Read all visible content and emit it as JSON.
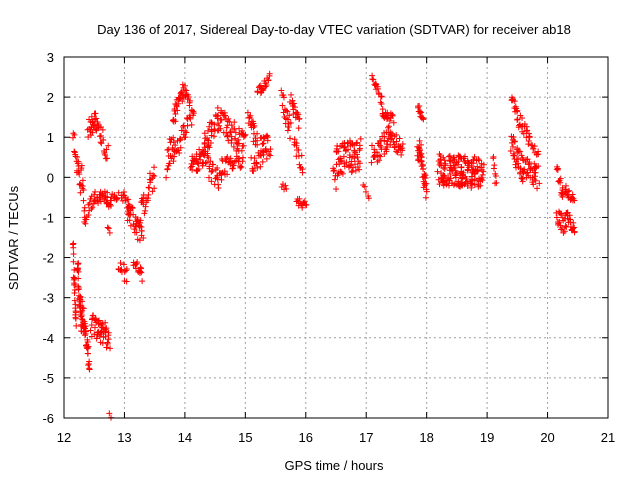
{
  "chart_data": {
    "type": "scatter",
    "title": "Day 136 of 2017, Sidereal Day-to-day VTEC variation (SDTVAR) for receiver ab18",
    "xlabel": "GPS time / hours",
    "ylabel": "SDTVAR / TECUs",
    "xlim": [
      12,
      21
    ],
    "ylim": [
      -6,
      3
    ],
    "x_ticks": [
      "12",
      "13",
      "14",
      "15",
      "16",
      "17",
      "18",
      "19",
      "20",
      "21"
    ],
    "y_ticks": [
      "3",
      "2",
      "1",
      "0",
      "-1",
      "-2",
      "-3",
      "-4",
      "-5",
      "-6"
    ],
    "grid": true,
    "marker": "+",
    "color": "#ff0000",
    "series": [
      {
        "name": "SDTVAR",
        "segments": [
          {
            "x": [
              12.15,
              12.2
            ],
            "y": [
              -1.8,
              -3.6
            ],
            "n": 25,
            "jitter": 0.35
          },
          {
            "x": [
              12.15,
              12.22
            ],
            "y": [
              1.05,
              0.3
            ],
            "n": 10,
            "jitter": 0.3
          },
          {
            "x": [
              12.22,
              12.28
            ],
            "y": [
              0.3,
              -0.3
            ],
            "n": 10,
            "jitter": 0.25
          },
          {
            "x": [
              12.22,
              12.3
            ],
            "y": [
              -2.2,
              -3.8
            ],
            "n": 35,
            "jitter": 0.35
          },
          {
            "x": [
              12.28,
              12.35
            ],
            "y": [
              0.3,
              -1.1
            ],
            "n": 12,
            "jitter": 0.3
          },
          {
            "x": [
              12.3,
              12.42
            ],
            "y": [
              -3.3,
              -4.6
            ],
            "n": 35,
            "jitter": 0.3
          },
          {
            "x": [
              12.35,
              12.5
            ],
            "y": [
              -1.0,
              -0.5
            ],
            "n": 15,
            "jitter": 0.2
          },
          {
            "x": [
              12.4,
              12.55
            ],
            "y": [
              1.2,
              1.4
            ],
            "n": 25,
            "jitter": 0.25
          },
          {
            "x": [
              12.45,
              12.75
            ],
            "y": [
              -3.7,
              -4.0
            ],
            "n": 50,
            "jitter": 0.3
          },
          {
            "x": [
              12.5,
              12.72
            ],
            "y": [
              -0.5,
              -0.5
            ],
            "n": 25,
            "jitter": 0.15
          },
          {
            "x": [
              12.55,
              12.72
            ],
            "y": [
              1.4,
              0.6
            ],
            "n": 20,
            "jitter": 0.3
          },
          {
            "x": [
              12.7,
              12.9
            ],
            "y": [
              -0.7,
              -0.45
            ],
            "n": 18,
            "jitter": 0.15
          },
          {
            "x": [
              12.72,
              12.76
            ],
            "y": [
              -1.2,
              -1.45
            ],
            "n": 3,
            "jitter": 0.1
          },
          {
            "x": [
              12.75,
              12.78
            ],
            "y": [
              -5.9,
              -5.95
            ],
            "n": 2,
            "jitter": 0.05
          },
          {
            "x": [
              12.9,
              13.05
            ],
            "y": [
              -2.1,
              -2.5
            ],
            "n": 12,
            "jitter": 0.25
          },
          {
            "x": [
              12.95,
              13.1
            ],
            "y": [
              -0.4,
              -0.8
            ],
            "n": 15,
            "jitter": 0.15
          },
          {
            "x": [
              13.05,
              13.3
            ],
            "y": [
              -0.8,
              -1.5
            ],
            "n": 35,
            "jitter": 0.3
          },
          {
            "x": [
              13.15,
              13.3
            ],
            "y": [
              -2.0,
              -2.4
            ],
            "n": 15,
            "jitter": 0.2
          },
          {
            "x": [
              13.25,
              13.5
            ],
            "y": [
              -1.0,
              0.1
            ],
            "n": 30,
            "jitter": 0.3
          },
          {
            "x": [
              13.7,
              13.85
            ],
            "y": [
              0.3,
              1.0
            ],
            "n": 25,
            "jitter": 0.4
          },
          {
            "x": [
              13.8,
              14.0
            ],
            "y": [
              1.5,
              2.2
            ],
            "n": 30,
            "jitter": 0.2
          },
          {
            "x": [
              13.85,
              14.1
            ],
            "y": [
              0.8,
              1.3
            ],
            "n": 25,
            "jitter": 0.3
          },
          {
            "x": [
              14.0,
              14.15
            ],
            "y": [
              2.2,
              1.6
            ],
            "n": 15,
            "jitter": 0.15
          },
          {
            "x": [
              14.1,
              14.4
            ],
            "y": [
              0.3,
              0.6
            ],
            "n": 45,
            "jitter": 0.25
          },
          {
            "x": [
              14.3,
              14.55
            ],
            "y": [
              0.8,
              1.4
            ],
            "n": 30,
            "jitter": 0.3
          },
          {
            "x": [
              14.4,
              14.6
            ],
            "y": [
              0.2,
              -0.1
            ],
            "n": 20,
            "jitter": 0.25
          },
          {
            "x": [
              14.55,
              14.95
            ],
            "y": [
              1.5,
              0.8
            ],
            "n": 50,
            "jitter": 0.3
          },
          {
            "x": [
              14.6,
              14.95
            ],
            "y": [
              0.2,
              0.5
            ],
            "n": 35,
            "jitter": 0.25
          },
          {
            "x": [
              14.95,
              15.0
            ],
            "y": [
              1.1,
              1.0
            ],
            "n": 5,
            "jitter": 0.1
          },
          {
            "x": [
              15.05,
              15.2
            ],
            "y": [
              1.5,
              0.9
            ],
            "n": 20,
            "jitter": 0.25
          },
          {
            "x": [
              15.1,
              15.4
            ],
            "y": [
              0.3,
              0.6
            ],
            "n": 30,
            "jitter": 0.2
          },
          {
            "x": [
              15.2,
              15.4
            ],
            "y": [
              2.1,
              2.5
            ],
            "n": 20,
            "jitter": 0.12
          },
          {
            "x": [
              15.25,
              15.38
            ],
            "y": [
              0.9,
              1.0
            ],
            "n": 10,
            "jitter": 0.1
          },
          {
            "x": [
              15.6,
              15.68
            ],
            "y": [
              -0.2,
              -0.3
            ],
            "n": 5,
            "jitter": 0.1
          },
          {
            "x": [
              15.6,
              15.75
            ],
            "y": [
              1.9,
              1.2
            ],
            "n": 20,
            "jitter": 0.3
          },
          {
            "x": [
              15.75,
              15.9
            ],
            "y": [
              1.9,
              1.3
            ],
            "n": 20,
            "jitter": 0.2
          },
          {
            "x": [
              15.8,
              15.95
            ],
            "y": [
              0.8,
              0.3
            ],
            "n": 15,
            "jitter": 0.25
          },
          {
            "x": [
              15.85,
              16.0
            ],
            "y": [
              -0.6,
              -0.7
            ],
            "n": 15,
            "jitter": 0.1
          },
          {
            "x": [
              16.45,
              16.5
            ],
            "y": [
              0.3,
              -0.2
            ],
            "n": 6,
            "jitter": 0.15
          },
          {
            "x": [
              16.5,
              16.9
            ],
            "y": [
              0.4,
              0.6
            ],
            "n": 70,
            "jitter": 0.4
          },
          {
            "x": [
              16.95,
              17.05
            ],
            "y": [
              -0.2,
              -0.5
            ],
            "n": 5,
            "jitter": 0.15
          },
          {
            "x": [
              17.1,
              17.25
            ],
            "y": [
              2.6,
              1.9
            ],
            "n": 15,
            "jitter": 0.15
          },
          {
            "x": [
              17.1,
              17.4
            ],
            "y": [
              0.5,
              1.0
            ],
            "n": 40,
            "jitter": 0.3
          },
          {
            "x": [
              17.25,
              17.45
            ],
            "y": [
              1.7,
              1.4
            ],
            "n": 20,
            "jitter": 0.15
          },
          {
            "x": [
              17.4,
              17.6
            ],
            "y": [
              1.0,
              0.7
            ],
            "n": 25,
            "jitter": 0.2
          },
          {
            "x": [
              17.85,
              17.95
            ],
            "y": [
              1.8,
              1.5
            ],
            "n": 12,
            "jitter": 0.12
          },
          {
            "x": [
              17.85,
              18.0
            ],
            "y": [
              0.8,
              -0.2
            ],
            "n": 40,
            "jitter": 0.35
          },
          {
            "x": [
              18.2,
              18.9
            ],
            "y": [
              0.2,
              0.1
            ],
            "n": 160,
            "jitter": 0.4
          },
          {
            "x": [
              18.9,
              18.95
            ],
            "y": [
              0.0,
              0.3
            ],
            "n": 6,
            "jitter": 0.2
          },
          {
            "x": [
              19.1,
              19.15
            ],
            "y": [
              0.5,
              -0.3
            ],
            "n": 8,
            "jitter": 0.3
          },
          {
            "x": [
              19.4,
              19.5
            ],
            "y": [
              2.0,
              1.6
            ],
            "n": 12,
            "jitter": 0.12
          },
          {
            "x": [
              19.4,
              19.6
            ],
            "y": [
              0.8,
              0.2
            ],
            "n": 35,
            "jitter": 0.35
          },
          {
            "x": [
              19.5,
              19.7
            ],
            "y": [
              1.5,
              1.0
            ],
            "n": 20,
            "jitter": 0.2
          },
          {
            "x": [
              19.6,
              19.85
            ],
            "y": [
              0.3,
              0.0
            ],
            "n": 35,
            "jitter": 0.3
          },
          {
            "x": [
              19.7,
              19.85
            ],
            "y": [
              0.9,
              0.6
            ],
            "n": 12,
            "jitter": 0.15
          },
          {
            "x": [
              20.15,
              20.25
            ],
            "y": [
              0.3,
              -0.5
            ],
            "n": 12,
            "jitter": 0.2
          },
          {
            "x": [
              20.15,
              20.3
            ],
            "y": [
              -1.0,
              -1.3
            ],
            "n": 20,
            "jitter": 0.25
          },
          {
            "x": [
              20.25,
              20.45
            ],
            "y": [
              -0.3,
              -0.5
            ],
            "n": 20,
            "jitter": 0.15
          },
          {
            "x": [
              20.3,
              20.45
            ],
            "y": [
              -0.8,
              -1.4
            ],
            "n": 22,
            "jitter": 0.15
          }
        ]
      }
    ]
  }
}
